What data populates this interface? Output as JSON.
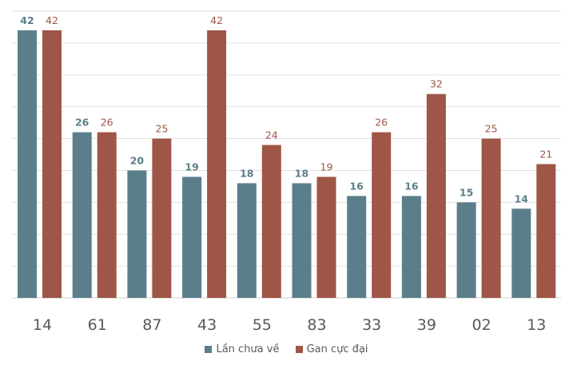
{
  "chart_data": {
    "type": "bar",
    "categories": [
      "14",
      "61",
      "87",
      "43",
      "55",
      "83",
      "33",
      "39",
      "02",
      "13"
    ],
    "series": [
      {
        "name": "Lần chưa về",
        "values": [
          42,
          26,
          20,
          19,
          18,
          18,
          16,
          16,
          15,
          14
        ],
        "color": "#5b7f8a"
      },
      {
        "name": "Gan cực đại",
        "values": [
          42,
          26,
          25,
          42,
          24,
          19,
          26,
          32,
          25,
          21
        ],
        "color": "#9e5646"
      }
    ],
    "ylim": [
      0,
      45
    ],
    "grid": true,
    "grid_step": 5,
    "legend": "bottom",
    "title": "",
    "xlabel": "",
    "ylabel": ""
  }
}
